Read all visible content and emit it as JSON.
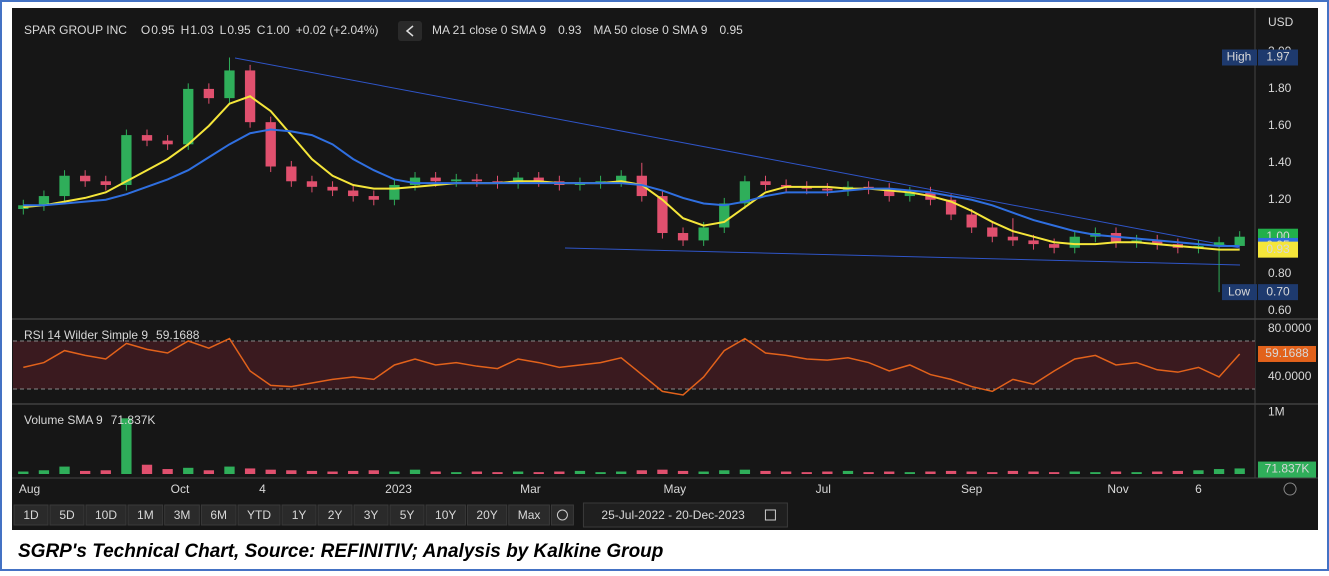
{
  "header": {
    "symbol": "SPAR GROUP INC",
    "ohlc_keys": [
      "O",
      "H",
      "L",
      "C"
    ],
    "ohlc_values": [
      "0.95",
      "1.03",
      "0.95",
      "1.00"
    ],
    "change": "+0.02 (+2.04%)",
    "ma21_label": "MA 21 close 0 SMA 9",
    "ma21_value": "0.93",
    "ma50_label": "MA 50 close 0 SMA 9",
    "ma50_value": "0.95",
    "currency": "USD"
  },
  "chart_data": [
    {
      "type": "candlestick",
      "up_color": "#2fae5a",
      "down_color": "#e0506e",
      "open": [
        1.15,
        1.17,
        1.22,
        1.33,
        1.3,
        1.28,
        1.55,
        1.52,
        1.5,
        1.8,
        1.75,
        1.9,
        1.62,
        1.38,
        1.3,
        1.27,
        1.25,
        1.22,
        1.2,
        1.28,
        1.32,
        1.3,
        1.31,
        1.3,
        1.29,
        1.32,
        1.3,
        1.28,
        1.29,
        1.3,
        1.33,
        1.22,
        1.02,
        0.98,
        1.05,
        1.18,
        1.3,
        1.28,
        1.27,
        1.26,
        1.25,
        1.27,
        1.26,
        1.22,
        1.24,
        1.2,
        1.12,
        1.05,
        1.0,
        0.98,
        0.96,
        0.94,
        1.0,
        1.02,
        0.97,
        0.98,
        0.96,
        0.94,
        0.95,
        0.95
      ],
      "high": [
        1.2,
        1.25,
        1.36,
        1.36,
        1.33,
        1.58,
        1.58,
        1.55,
        1.83,
        1.83,
        1.97,
        1.93,
        1.65,
        1.41,
        1.33,
        1.3,
        1.28,
        1.25,
        1.31,
        1.35,
        1.35,
        1.34,
        1.34,
        1.33,
        1.35,
        1.35,
        1.33,
        1.32,
        1.33,
        1.36,
        1.4,
        1.25,
        1.05,
        1.08,
        1.21,
        1.33,
        1.33,
        1.31,
        1.3,
        1.29,
        1.3,
        1.3,
        1.29,
        1.27,
        1.27,
        1.23,
        1.15,
        1.08,
        1.1,
        1.01,
        0.99,
        1.03,
        1.05,
        1.05,
        1.01,
        1.01,
        0.99,
        0.98,
        1.0,
        1.03
      ],
      "low": [
        1.12,
        1.14,
        1.19,
        1.27,
        1.25,
        1.25,
        1.49,
        1.47,
        1.47,
        1.72,
        1.72,
        1.59,
        1.35,
        1.27,
        1.24,
        1.22,
        1.19,
        1.17,
        1.17,
        1.25,
        1.27,
        1.27,
        1.27,
        1.26,
        1.26,
        1.27,
        1.25,
        1.25,
        1.26,
        1.27,
        1.19,
        0.99,
        0.95,
        0.95,
        1.02,
        1.15,
        1.25,
        1.24,
        1.23,
        1.22,
        1.22,
        1.23,
        1.19,
        1.19,
        1.17,
        1.09,
        1.02,
        0.97,
        0.95,
        0.93,
        0.91,
        0.91,
        0.97,
        0.94,
        0.94,
        0.93,
        0.91,
        0.91,
        0.7,
        0.95
      ],
      "close": [
        1.17,
        1.22,
        1.33,
        1.3,
        1.28,
        1.55,
        1.52,
        1.5,
        1.8,
        1.75,
        1.9,
        1.62,
        1.38,
        1.3,
        1.27,
        1.25,
        1.22,
        1.2,
        1.28,
        1.32,
        1.3,
        1.31,
        1.3,
        1.29,
        1.32,
        1.3,
        1.28,
        1.29,
        1.3,
        1.33,
        1.22,
        1.02,
        0.98,
        1.05,
        1.18,
        1.3,
        1.28,
        1.27,
        1.26,
        1.25,
        1.27,
        1.26,
        1.22,
        1.24,
        1.2,
        1.12,
        1.05,
        1.0,
        0.98,
        0.96,
        0.94,
        1.0,
        1.02,
        0.97,
        0.98,
        0.96,
        0.94,
        0.95,
        0.97,
        1.0
      ],
      "series": [
        {
          "name": "MA 21",
          "color": "#f5e63a",
          "values": [
            1.16,
            1.17,
            1.19,
            1.21,
            1.24,
            1.3,
            1.36,
            1.42,
            1.5,
            1.6,
            1.72,
            1.76,
            1.68,
            1.55,
            1.42,
            1.33,
            1.28,
            1.26,
            1.26,
            1.27,
            1.28,
            1.29,
            1.29,
            1.29,
            1.3,
            1.3,
            1.29,
            1.29,
            1.29,
            1.3,
            1.28,
            1.2,
            1.1,
            1.06,
            1.08,
            1.16,
            1.24,
            1.27,
            1.27,
            1.27,
            1.26,
            1.26,
            1.25,
            1.24,
            1.22,
            1.19,
            1.14,
            1.08,
            1.03,
            1.0,
            0.97,
            0.96,
            0.96,
            0.97,
            0.97,
            0.96,
            0.95,
            0.94,
            0.93,
            0.93
          ]
        },
        {
          "name": "MA 50",
          "color": "#2f6fe0",
          "values": [
            1.17,
            1.17,
            1.18,
            1.19,
            1.2,
            1.23,
            1.27,
            1.31,
            1.36,
            1.43,
            1.5,
            1.56,
            1.58,
            1.57,
            1.55,
            1.5,
            1.42,
            1.36,
            1.31,
            1.29,
            1.29,
            1.29,
            1.29,
            1.29,
            1.29,
            1.29,
            1.29,
            1.29,
            1.29,
            1.29,
            1.28,
            1.25,
            1.21,
            1.18,
            1.17,
            1.19,
            1.22,
            1.24,
            1.24,
            1.24,
            1.25,
            1.26,
            1.26,
            1.25,
            1.24,
            1.22,
            1.2,
            1.17,
            1.13,
            1.09,
            1.06,
            1.03,
            1.01,
            1.0,
            0.99,
            0.98,
            0.97,
            0.96,
            0.95,
            0.95
          ]
        }
      ],
      "ylim": [
        0.56,
        2.2
      ],
      "yticks": [
        {
          "value": 0.6,
          "label": "0.60"
        },
        {
          "value": 0.8,
          "label": "0.80"
        },
        {
          "value": 1.0,
          "label": "1.00"
        },
        {
          "value": 1.2,
          "label": "1.20"
        },
        {
          "value": 1.4,
          "label": "1.40"
        },
        {
          "value": 1.6,
          "label": "1.60"
        },
        {
          "value": 1.8,
          "label": "1.80"
        },
        {
          "value": 2.0,
          "label": "2.00"
        }
      ],
      "xlim": [
        -0.5,
        59.5
      ],
      "xticks": [
        {
          "value": 0.3,
          "label": "Aug"
        },
        {
          "value": 7.6,
          "label": "Oct"
        },
        {
          "value": 11.6,
          "label": "4"
        },
        {
          "value": 18.2,
          "label": "2023"
        },
        {
          "value": 24.6,
          "label": "Mar"
        },
        {
          "value": 31.6,
          "label": "May"
        },
        {
          "value": 38.8,
          "label": "Jul"
        },
        {
          "value": 46.0,
          "label": "Sep"
        },
        {
          "value": 53.1,
          "label": "Nov"
        },
        {
          "value": 57.0,
          "label": "6"
        }
      ],
      "badges": [
        {
          "name": "High",
          "value": 1.97,
          "label": "1.97",
          "color": "#1e3a6e",
          "text_color": "#ffffff"
        },
        {
          "value": 1.0,
          "label": "1.00",
          "color": "#22b04b",
          "text_color": "#000000"
        },
        {
          "value": 0.95,
          "label": "0.95",
          "color": "#2f6fe0",
          "text_color": "#ffffff"
        },
        {
          "value": 0.93,
          "label": "0.93",
          "color": "#f5e63a",
          "text_color": "#000000"
        },
        {
          "name": "Low",
          "value": 0.7,
          "label": "0.70",
          "color": "#1e3a6e",
          "text_color": "#ffffff"
        }
      ]
    },
    {
      "type": "line",
      "title": "RSI 14 Wilder Simple 9",
      "color": "#e2621b",
      "band": [
        30,
        70
      ],
      "values": [
        48,
        52,
        62,
        58,
        55,
        68,
        63,
        60,
        70,
        64,
        72,
        45,
        33,
        32,
        35,
        38,
        40,
        38,
        50,
        55,
        50,
        52,
        49,
        47,
        55,
        52,
        48,
        50,
        52,
        56,
        42,
        28,
        25,
        40,
        62,
        72,
        60,
        58,
        55,
        54,
        56,
        52,
        45,
        50,
        42,
        38,
        32,
        28,
        38,
        34,
        45,
        55,
        58,
        50,
        52,
        46,
        44,
        48,
        40,
        59.1688
      ],
      "ylim": [
        18.3,
        87.5
      ],
      "yticks": [
        {
          "value": 80,
          "label": "80.0000"
        },
        {
          "value": 40,
          "label": "40.0000"
        }
      ]
    },
    {
      "type": "volume",
      "title": "Volume SMA 9",
      "sma": {
        "value": 71837,
        "label": "71.837K"
      },
      "color": "#2fae5a",
      "values": [
        40000,
        60000,
        120000,
        50000,
        60000,
        900000,
        150000,
        80000,
        100000,
        60000,
        120000,
        90000,
        70000,
        60000,
        50000,
        40000,
        50000,
        60000,
        40000,
        70000,
        40000,
        30000,
        40000,
        30000,
        40000,
        30000,
        40000,
        50000,
        30000,
        40000,
        60000,
        70000,
        50000,
        40000,
        60000,
        70000,
        50000,
        40000,
        30000,
        40000,
        50000,
        30000,
        40000,
        30000,
        40000,
        50000,
        40000,
        30000,
        50000,
        40000,
        30000,
        40000,
        30000,
        40000,
        30000,
        40000,
        50000,
        60000,
        80000,
        90000
      ],
      "ylim": [
        0,
        1115000
      ],
      "yticks": [
        {
          "value": 1000000,
          "label": "1M"
        }
      ]
    }
  ],
  "toolbar": {
    "ranges": [
      "1D",
      "5D",
      "10D",
      "1M",
      "3M",
      "6M",
      "YTD",
      "1Y",
      "2Y",
      "3Y",
      "5Y",
      "10Y",
      "20Y",
      "Max"
    ],
    "date_range": "25-Jul-2022 - 20-Dec-2023"
  },
  "caption": "SGRP's Technical Chart, Source: REFINITIV; Analysis by Kalkine Group"
}
